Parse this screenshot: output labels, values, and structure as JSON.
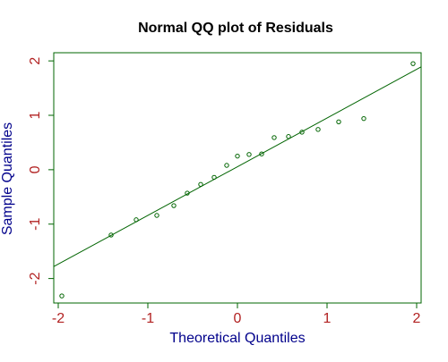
{
  "chart_data": {
    "type": "scatter",
    "title": "Normal QQ plot of Residuals",
    "xlabel": "Theoretical Quantiles",
    "ylabel": "Sample Quantiles",
    "xlim": [
      -2.05,
      2.05
    ],
    "ylim": [
      -2.45,
      2.15
    ],
    "xticks": [
      -2,
      -1,
      0,
      1,
      2
    ],
    "yticks": [
      -2,
      -1,
      0,
      1,
      2
    ],
    "grid": false,
    "legend": "none",
    "series": [
      {
        "points": [
          {
            "x": -1.96,
            "y": -2.32
          },
          {
            "x": -1.41,
            "y": -1.2
          },
          {
            "x": -1.13,
            "y": -0.92
          },
          {
            "x": -0.9,
            "y": -0.84
          },
          {
            "x": -0.71,
            "y": -0.66
          },
          {
            "x": -0.56,
            "y": -0.43
          },
          {
            "x": -0.41,
            "y": -0.27
          },
          {
            "x": -0.26,
            "y": -0.14
          },
          {
            "x": -0.12,
            "y": 0.08
          },
          {
            "x": 0.0,
            "y": 0.25
          },
          {
            "x": 0.13,
            "y": 0.28
          },
          {
            "x": 0.27,
            "y": 0.29
          },
          {
            "x": 0.41,
            "y": 0.59
          },
          {
            "x": 0.57,
            "y": 0.61
          },
          {
            "x": 0.72,
            "y": 0.69
          },
          {
            "x": 0.9,
            "y": 0.74
          },
          {
            "x": 1.13,
            "y": 0.88
          },
          {
            "x": 1.41,
            "y": 0.94
          },
          {
            "x": 1.96,
            "y": 1.95
          }
        ]
      }
    ],
    "reference_line": {
      "x": [
        -2.05,
        2.05
      ],
      "y": [
        -1.78,
        1.89
      ]
    },
    "colors": {
      "points": "#006400",
      "line": "#006400",
      "axes": "#006400",
      "tick_labels": "#b22222",
      "axis_labels": "#00008b",
      "title": "#000000"
    }
  }
}
